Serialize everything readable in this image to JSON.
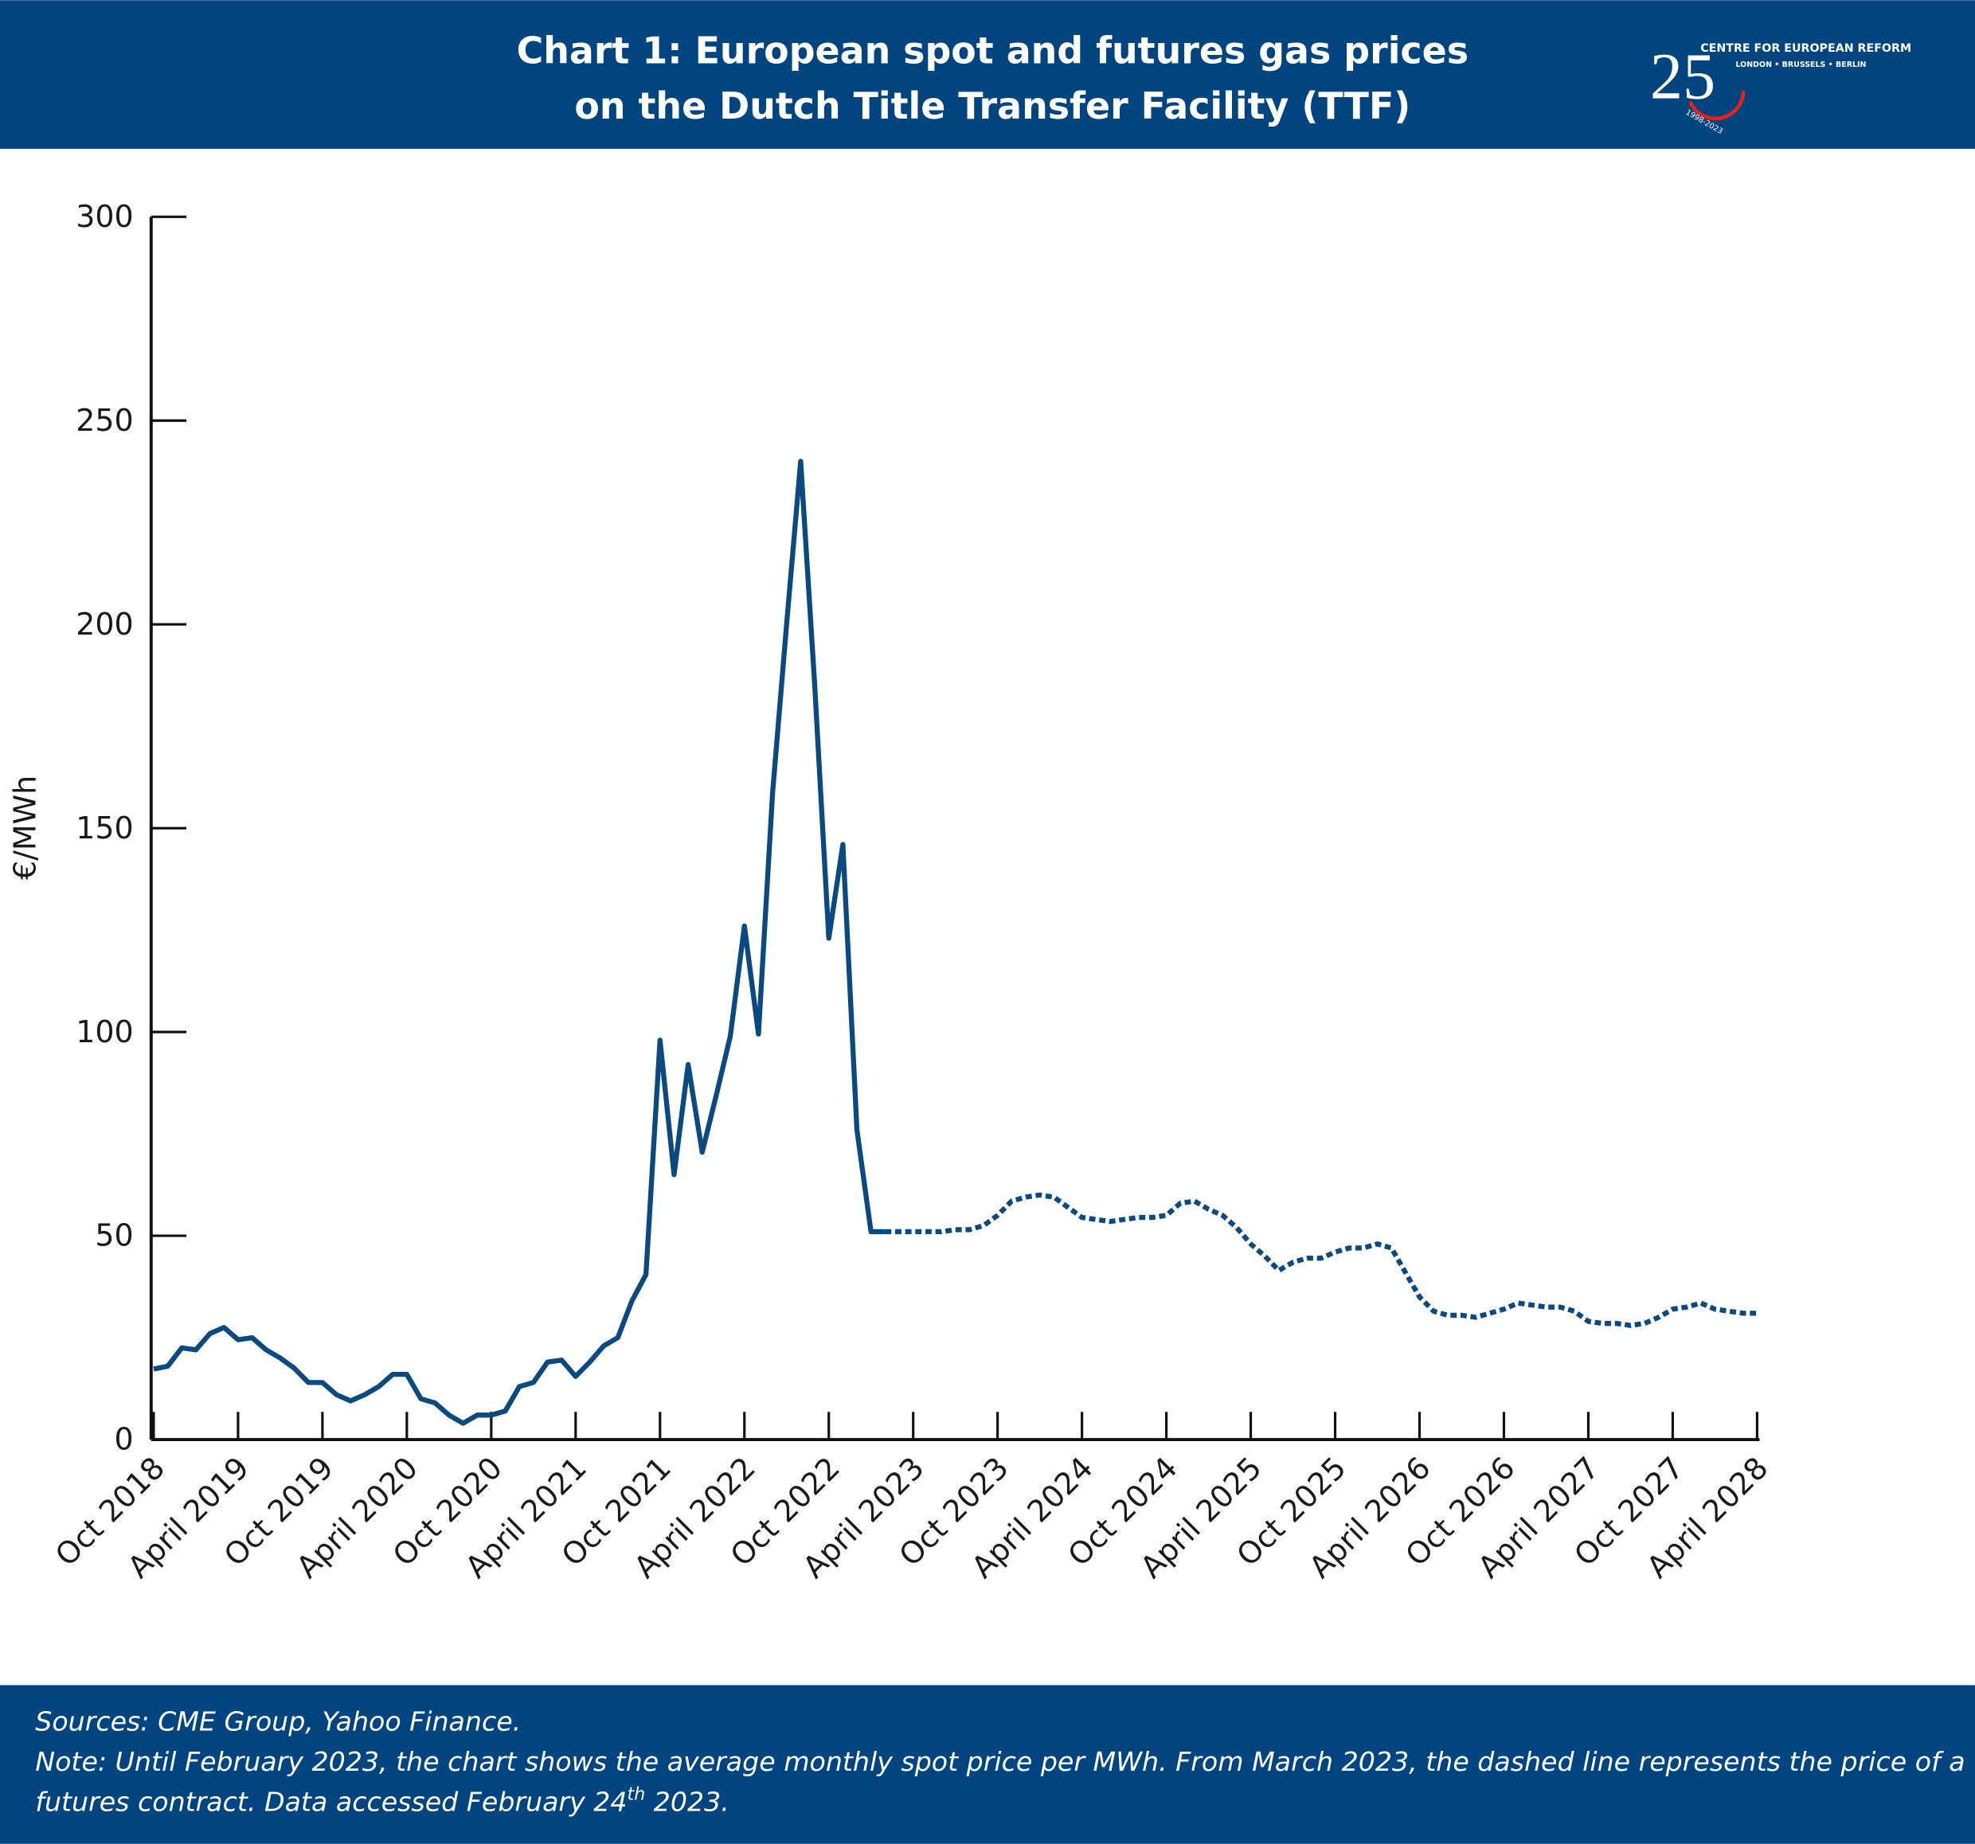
{
  "header": {
    "title_lines": [
      "Chart 1: European spot and futures gas prices",
      "on the Dutch Title Transfer Facility (TTF)"
    ],
    "logo": {
      "number": "25",
      "name": "CENTRE FOR EUROPEAN REFORM",
      "cities": "LONDON • BRUSSELS • BERLIN",
      "years": "1998-2023"
    }
  },
  "chart_data": {
    "type": "line",
    "y_label": "€/MWh",
    "ylim": [
      0,
      300
    ],
    "yticks": [
      0,
      50,
      100,
      150,
      200,
      250,
      300
    ],
    "categories": [
      "Oct 2018",
      null,
      null,
      null,
      null,
      null,
      "April 2019",
      null,
      null,
      null,
      null,
      null,
      "Oct 2019",
      null,
      null,
      null,
      null,
      null,
      "April 2020",
      null,
      null,
      null,
      null,
      null,
      "Oct 2020",
      null,
      null,
      null,
      null,
      null,
      "April 2021",
      null,
      null,
      null,
      null,
      null,
      "Oct 2021",
      null,
      null,
      null,
      null,
      null,
      "April 2022",
      null,
      null,
      null,
      null,
      null,
      "Oct 2022",
      null,
      null,
      null,
      null,
      null,
      "April 2023",
      null,
      null,
      null,
      null,
      null,
      "Oct 2023",
      null,
      null,
      null,
      null,
      null,
      "April 2024",
      null,
      null,
      null,
      null,
      null,
      "Oct 2024",
      null,
      null,
      null,
      null,
      null,
      "April 2025",
      null,
      null,
      null,
      null,
      null,
      "Oct 2025",
      null,
      null,
      null,
      null,
      null,
      "April 2026",
      null,
      null,
      null,
      null,
      null,
      "Oct 2026",
      null,
      null,
      null,
      null,
      null,
      "April 2027",
      null,
      null,
      null,
      null,
      null,
      "Oct 2027",
      null,
      null,
      null,
      null,
      null,
      "April 2028"
    ],
    "series": [
      {
        "color": "#0b4a80",
        "dashed": false,
        "values": [
          17.3,
          18,
          22.5,
          22,
          26,
          27.5,
          24.5,
          25,
          22,
          20,
          17.5,
          14,
          14,
          11,
          9.5,
          11,
          13,
          16,
          16,
          10,
          9,
          6,
          4,
          6,
          6,
          7,
          13,
          14,
          19,
          19.5,
          15.5,
          19,
          23,
          25,
          34,
          40.5,
          98,
          65,
          92,
          70.5,
          84.5,
          99,
          126,
          99.5,
          158.5,
          200,
          240,
          185,
          123,
          146,
          76,
          51,
          51,
          null,
          null,
          null,
          null,
          null,
          null,
          null,
          null,
          null,
          null,
          null,
          null,
          null,
          null,
          null,
          null,
          null,
          null,
          null,
          null,
          null,
          null,
          null,
          null,
          null,
          null,
          null,
          null,
          null,
          null,
          null,
          null,
          null,
          null,
          null,
          null,
          null,
          null,
          null,
          null,
          null,
          null,
          null,
          null,
          null,
          null,
          null,
          null,
          null,
          null,
          null,
          null,
          null,
          null,
          null,
          null,
          null,
          null,
          null,
          null,
          null,
          null
        ]
      },
      {
        "color": "#0b4a80",
        "dashed": true,
        "values": [
          null,
          null,
          null,
          null,
          null,
          null,
          null,
          null,
          null,
          null,
          null,
          null,
          null,
          null,
          null,
          null,
          null,
          null,
          null,
          null,
          null,
          null,
          null,
          null,
          null,
          null,
          null,
          null,
          null,
          null,
          null,
          null,
          null,
          null,
          null,
          null,
          null,
          null,
          null,
          null,
          null,
          null,
          null,
          null,
          null,
          null,
          null,
          null,
          null,
          null,
          null,
          null,
          51,
          51,
          51,
          51,
          51,
          51.5,
          51.5,
          52.5,
          55,
          58.5,
          59.5,
          60,
          59.5,
          57,
          54.5,
          54,
          53.5,
          54,
          54.5,
          54.5,
          55,
          58,
          58.5,
          56.5,
          55,
          52,
          48,
          45,
          41.5,
          43.5,
          44.5,
          44.5,
          46,
          47,
          47,
          48,
          47,
          41,
          35,
          31.5,
          30.5,
          30.5,
          30,
          31,
          32,
          33.5,
          33,
          32.5,
          32.5,
          31.5,
          29,
          28.5,
          28.5,
          28,
          28.5,
          30,
          32,
          32.5,
          33.5,
          32,
          31.5,
          31,
          31
        ]
      }
    ]
  },
  "footer": {
    "sources": "Sources: CME Group, Yahoo Finance.",
    "note_line1": "Note: Until February 2023, the chart shows the average monthly spot price per MWh. From March 2023, the dashed line represents the price of a",
    "note_line2": "futures contract. Data accessed February 24",
    "note_sup": "th",
    "note_end": " 2023."
  }
}
